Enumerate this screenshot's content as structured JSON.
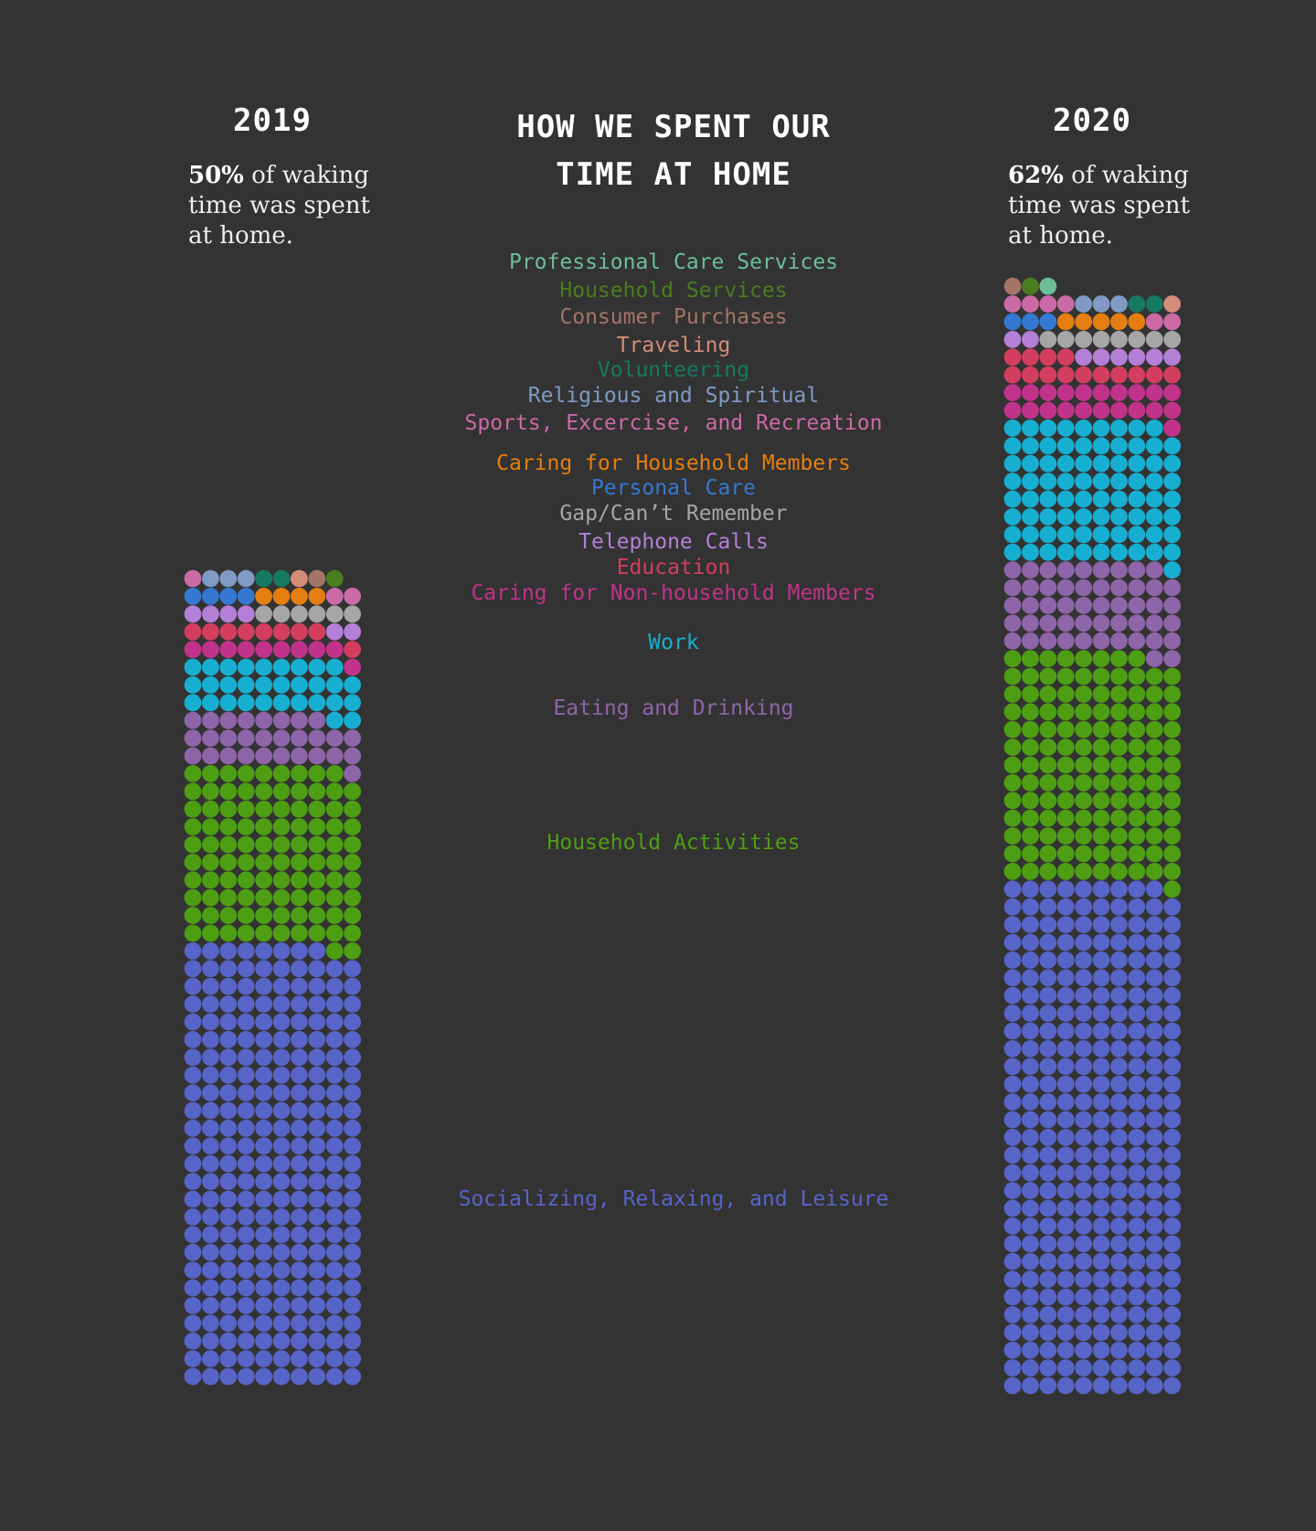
{
  "header": {
    "title_line1": "HOW WE SPENT OUR",
    "title_line2": "TIME AT HOME"
  },
  "panels": [
    {
      "year": "2019",
      "percent": "50%",
      "note_rest_1": " of waking",
      "note_line2": "time was spent",
      "note_line3": "at home."
    },
    {
      "year": "2020",
      "percent": "62%",
      "note_rest_1": " of waking",
      "note_line2": "time was spent",
      "note_line3": "at home."
    }
  ],
  "chart_data": {
    "type": "waffle",
    "unit": "dots",
    "columns_per_row": 10,
    "categories": [
      {
        "name": "Professional Care Services",
        "color": "#6dbd98"
      },
      {
        "name": "Household Services",
        "color": "#4a7d1f"
      },
      {
        "name": "Consumer Purchases",
        "color": "#a57468"
      },
      {
        "name": "Traveling",
        "color": "#d48c78"
      },
      {
        "name": "Volunteering",
        "color": "#167a60"
      },
      {
        "name": "Religious and Spiritual",
        "color": "#7f9ac4"
      },
      {
        "name": "Sports, Excercise, and Recreation",
        "color": "#cc6aa6"
      },
      {
        "name": "Caring for Household Members",
        "color": "#e57e10"
      },
      {
        "name": "Personal Care",
        "color": "#3578d1"
      },
      {
        "name": "Gap/Can’t Remember",
        "color": "#a6a6a6"
      },
      {
        "name": "Telephone Calls",
        "color": "#b47fd6"
      },
      {
        "name": "Education",
        "color": "#d43e5e"
      },
      {
        "name": "Caring for Non-household Members",
        "color": "#c1338a"
      },
      {
        "name": "Work",
        "color": "#17afd1"
      },
      {
        "name": "Eating and Drinking",
        "color": "#8e65a8"
      },
      {
        "name": "Household Activities",
        "color": "#4e9e14"
      },
      {
        "name": "Socializing, Relaxing, and Leisure",
        "color": "#5764c8"
      }
    ],
    "series": [
      {
        "name": "2019",
        "values": [
          0,
          1,
          1,
          1,
          2,
          3,
          3,
          4,
          4,
          6,
          6,
          9,
          10,
          31,
          29,
          101,
          248
        ]
      },
      {
        "name": "2020",
        "values": [
          1,
          1,
          1,
          1,
          2,
          3,
          6,
          5,
          3,
          8,
          8,
          14,
          21,
          80,
          51,
          129,
          289
        ]
      }
    ]
  }
}
